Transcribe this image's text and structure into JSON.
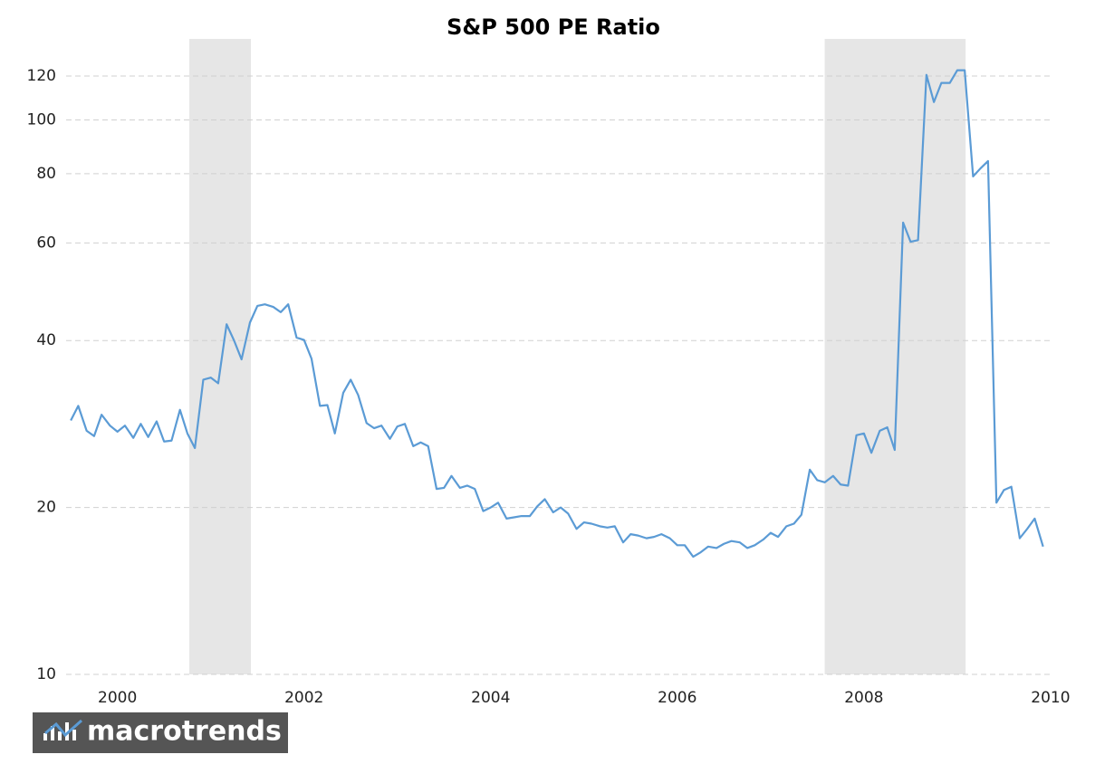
{
  "chart_data": {
    "type": "line",
    "title": "S&P 500 PE Ratio",
    "watermark": "macrotrends",
    "log_y": true,
    "grid": true,
    "recessions": [
      [
        2000.77,
        2001.43
      ],
      [
        2007.58,
        2009.09
      ]
    ],
    "recession_color": "#e6e6e6",
    "xlim": [
      1999.45,
      2010.03
    ],
    "xticks": [
      2000,
      2002,
      2004,
      2006,
      2008,
      2010
    ],
    "ylim": [
      10,
      140
    ],
    "yticks": [
      10,
      20,
      40,
      60,
      80,
      100,
      120
    ],
    "x": [
      1999.5,
      1999.58,
      1999.67,
      1999.75,
      1999.83,
      1999.92,
      2000,
      2000.08,
      2000.17,
      2000.25,
      2000.33,
      2000.42,
      2000.5,
      2000.58,
      2000.67,
      2000.75,
      2000.83,
      2000.92,
      2001,
      2001.08,
      2001.17,
      2001.25,
      2001.33,
      2001.42,
      2001.5,
      2001.58,
      2001.67,
      2001.75,
      2001.83,
      2001.92,
      2002,
      2002.08,
      2002.17,
      2002.25,
      2002.33,
      2002.42,
      2002.5,
      2002.58,
      2002.67,
      2002.75,
      2002.83,
      2002.92,
      2003,
      2003.08,
      2003.17,
      2003.25,
      2003.33,
      2003.42,
      2003.5,
      2003.58,
      2003.67,
      2003.75,
      2003.83,
      2003.92,
      2004,
      2004.08,
      2004.17,
      2004.25,
      2004.33,
      2004.42,
      2004.5,
      2004.58,
      2004.67,
      2004.75,
      2004.83,
      2004.92,
      2005,
      2005.08,
      2005.17,
      2005.25,
      2005.33,
      2005.42,
      2005.5,
      2005.58,
      2005.67,
      2005.75,
      2005.83,
      2005.92,
      2006,
      2006.08,
      2006.17,
      2006.25,
      2006.33,
      2006.42,
      2006.5,
      2006.58,
      2006.67,
      2006.75,
      2006.83,
      2006.92,
      2007,
      2007.08,
      2007.17,
      2007.25,
      2007.33,
      2007.42,
      2007.5,
      2007.58,
      2007.67,
      2007.75,
      2007.83,
      2007.92,
      2008,
      2008.08,
      2008.17,
      2008.25,
      2008.33,
      2008.42,
      2008.5,
      2008.58,
      2008.67,
      2008.75,
      2008.83,
      2008.92,
      2009,
      2009.08,
      2009.17,
      2009.25,
      2009.33,
      2009.42,
      2009.5,
      2009.58,
      2009.67,
      2009.75,
      2009.83,
      2009.92
    ],
    "series": [
      {
        "name": "PE Ratio",
        "color": "#5b9bd5",
        "values": [
          28.7,
          30.5,
          27.5,
          26.9,
          29.4,
          28.1,
          27.4,
          28.1,
          26.7,
          28.3,
          26.8,
          28.6,
          26.3,
          26.4,
          30.0,
          27.2,
          25.6,
          34.0,
          34.3,
          33.5,
          42.8,
          40.0,
          37.0,
          43.1,
          46.2,
          46.5,
          46.0,
          45.0,
          46.5,
          40.5,
          40.1,
          37.1,
          30.5,
          30.6,
          27.2,
          32.2,
          34.0,
          31.9,
          28.4,
          27.8,
          28.1,
          26.6,
          28.0,
          28.3,
          25.8,
          26.2,
          25.8,
          21.6,
          21.7,
          22.8,
          21.7,
          21.9,
          21.6,
          19.7,
          20.0,
          20.4,
          19.1,
          19.2,
          19.3,
          19.3,
          20.1,
          20.7,
          19.6,
          20.0,
          19.5,
          18.3,
          18.8,
          18.7,
          18.5,
          18.4,
          18.5,
          17.3,
          17.9,
          17.8,
          17.6,
          17.7,
          17.9,
          17.6,
          17.1,
          17.1,
          16.3,
          16.6,
          17.0,
          16.9,
          17.2,
          17.4,
          17.3,
          16.9,
          17.1,
          17.5,
          18.0,
          17.7,
          18.5,
          18.7,
          19.4,
          23.4,
          22.4,
          22.2,
          22.8,
          22.0,
          21.9,
          27.0,
          27.2,
          25.1,
          27.5,
          27.9,
          25.4,
          65.3,
          60.3,
          60.7,
          120.6,
          107.7,
          116.6,
          116.6,
          122.9,
          122.9,
          79.1,
          81.8,
          84.3,
          20.4,
          21.5,
          21.8,
          17.6,
          18.3,
          19.1,
          17.0
        ]
      }
    ]
  }
}
